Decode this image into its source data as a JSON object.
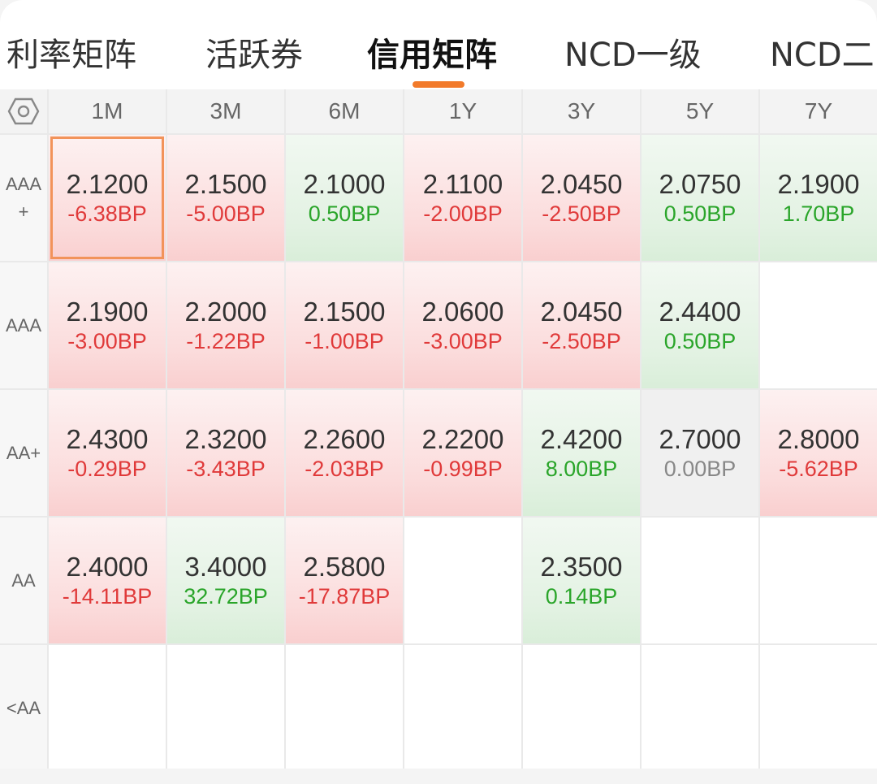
{
  "tabs": [
    {
      "label": "利率矩阵",
      "active": false
    },
    {
      "label": "活跃券",
      "active": false
    },
    {
      "label": "信用矩阵",
      "active": true
    },
    {
      "label": "NCD一级",
      "active": false
    },
    {
      "label": "NCD二",
      "active": false
    }
  ],
  "columns": [
    "1M",
    "3M",
    "6M",
    "1Y",
    "3Y",
    "5Y",
    "7Y"
  ],
  "rows": [
    {
      "label_lines": [
        "AAA",
        "+"
      ],
      "cells": [
        {
          "rate": "2.1200",
          "bp": "-6.38BP",
          "tone": "red",
          "selected": true
        },
        {
          "rate": "2.1500",
          "bp": "-5.00BP",
          "tone": "red"
        },
        {
          "rate": "2.1000",
          "bp": "0.50BP",
          "tone": "green"
        },
        {
          "rate": "2.1100",
          "bp": "-2.00BP",
          "tone": "red"
        },
        {
          "rate": "2.0450",
          "bp": "-2.50BP",
          "tone": "red"
        },
        {
          "rate": "2.0750",
          "bp": "0.50BP",
          "tone": "green"
        },
        {
          "rate": "2.1900",
          "bp": "1.70BP",
          "tone": "green"
        }
      ]
    },
    {
      "label_lines": [
        "AAA"
      ],
      "cells": [
        {
          "rate": "2.1900",
          "bp": "-3.00BP",
          "tone": "red"
        },
        {
          "rate": "2.2000",
          "bp": "-1.22BP",
          "tone": "red"
        },
        {
          "rate": "2.1500",
          "bp": "-1.00BP",
          "tone": "red"
        },
        {
          "rate": "2.0600",
          "bp": "-3.00BP",
          "tone": "red"
        },
        {
          "rate": "2.0450",
          "bp": "-2.50BP",
          "tone": "red"
        },
        {
          "rate": "2.4400",
          "bp": "0.50BP",
          "tone": "green"
        },
        null
      ]
    },
    {
      "label_lines": [
        "AA+"
      ],
      "cells": [
        {
          "rate": "2.4300",
          "bp": "-0.29BP",
          "tone": "red"
        },
        {
          "rate": "2.3200",
          "bp": "-3.43BP",
          "tone": "red"
        },
        {
          "rate": "2.2600",
          "bp": "-2.03BP",
          "tone": "red"
        },
        {
          "rate": "2.2200",
          "bp": "-0.99BP",
          "tone": "red"
        },
        {
          "rate": "2.4200",
          "bp": "8.00BP",
          "tone": "green"
        },
        {
          "rate": "2.7000",
          "bp": "0.00BP",
          "tone": "gray"
        },
        {
          "rate": "2.8000",
          "bp": "-5.62BP",
          "tone": "red"
        }
      ]
    },
    {
      "label_lines": [
        "AA"
      ],
      "cells": [
        {
          "rate": "2.4000",
          "bp": "-14.11BP",
          "tone": "red"
        },
        {
          "rate": "3.4000",
          "bp": "32.72BP",
          "tone": "green"
        },
        {
          "rate": "2.5800",
          "bp": "-17.87BP",
          "tone": "red"
        },
        null,
        {
          "rate": "2.3500",
          "bp": "0.14BP",
          "tone": "green"
        },
        null,
        null
      ]
    },
    {
      "label_lines": [
        "<AA"
      ],
      "cells": [
        null,
        null,
        null,
        null,
        null,
        null,
        null
      ]
    }
  ],
  "icons": {
    "settings": "hexagon-settings-icon"
  },
  "colors": {
    "accent": "#f27a2a",
    "up": "#e03a3a",
    "down": "#2aa52a"
  }
}
